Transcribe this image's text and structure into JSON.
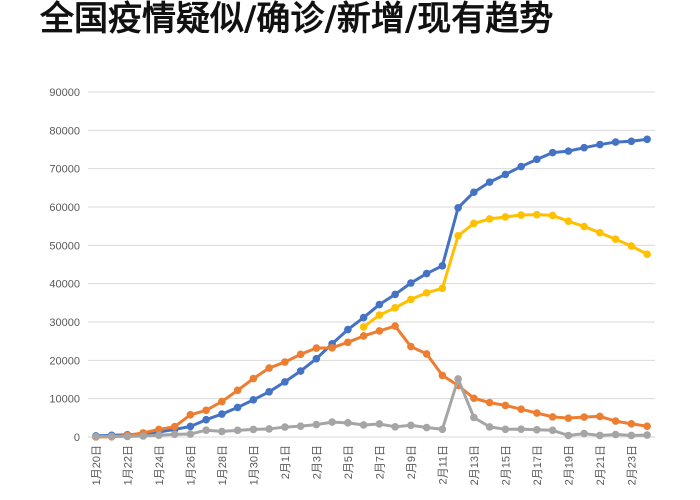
{
  "chart_data": {
    "type": "line",
    "title": "全国疫情疑似/确诊/新增/现有趋势",
    "categories": [
      "1月20日",
      null,
      "1月22日",
      null,
      "1月24日",
      null,
      "1月26日",
      null,
      "1月28日",
      null,
      "1月30日",
      null,
      "2月1日",
      null,
      "2月3日",
      null,
      "2月5日",
      null,
      "2月7日",
      null,
      "2月9日",
      null,
      "2月11日",
      null,
      "2月13日",
      null,
      "2月15日",
      null,
      "2月17日",
      null,
      "2月19日",
      null,
      "2月21日",
      null,
      "2月23日",
      null
    ],
    "series": [
      {
        "color": "#4472c4",
        "values": [
          291,
          440,
          571,
          830,
          1287,
          1975,
          2744,
          4515,
          5974,
          7711,
          9692,
          11791,
          14380,
          17205,
          20438,
          24324,
          28018,
          31161,
          34546,
          37198,
          40171,
          42638,
          44653,
          59804,
          63851,
          66492,
          68500,
          70548,
          72436,
          74185,
          74576,
          75465,
          76288,
          76936,
          77150,
          77658
        ]
      },
      {
        "color": "#ed7d31",
        "values": [
          0,
          54,
          393,
          1072,
          1965,
          2684,
          5794,
          6973,
          9239,
          12167,
          15238,
          17988,
          19544,
          21558,
          23214,
          23260,
          24702,
          26359,
          27657,
          28942,
          23589,
          21675,
          16067,
          13435,
          10109,
          8969,
          8228,
          7264,
          6242,
          5248,
          4922,
          5206,
          5365,
          4148,
          3434,
          2824
        ]
      },
      {
        "color": "#a5a5a5",
        "values": [
          77,
          149,
          131,
          259,
          444,
          688,
          769,
          1771,
          1459,
          1737,
          1982,
          2102,
          2590,
          2829,
          3235,
          3887,
          3694,
          3143,
          3399,
          2656,
          3062,
          2478,
          2015,
          15152,
          5090,
          2641,
          2009,
          2048,
          1886,
          1749,
          394,
          889,
          397,
          648,
          409,
          508
        ]
      },
      {
        "color": "#ffc000",
        "values": [
          null,
          null,
          null,
          null,
          null,
          null,
          null,
          null,
          null,
          null,
          null,
          null,
          null,
          null,
          null,
          null,
          null,
          28700,
          31800,
          33700,
          35900,
          37600,
          38800,
          52500,
          55700,
          56900,
          57400,
          57900,
          58000,
          57800,
          56300,
          54900,
          53300,
          51600,
          49800,
          47700
        ]
      }
    ],
    "ylim": [
      0,
      90000
    ],
    "yticks": [
      0,
      10000,
      20000,
      30000,
      40000,
      50000,
      60000,
      70000,
      80000,
      90000
    ],
    "grid": true
  }
}
